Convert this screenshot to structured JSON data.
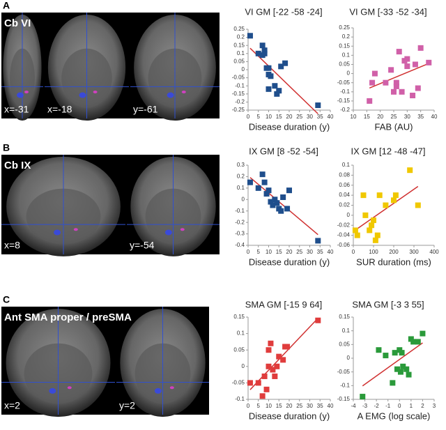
{
  "panels": [
    {
      "letter": "A",
      "region": "Cb VI",
      "slices": [
        "x=-31",
        "x=-18",
        "y=-61"
      ]
    },
    {
      "letter": "B",
      "region": "Cb IX",
      "slices": [
        "x=8",
        "y=-54"
      ]
    },
    {
      "letter": "C",
      "region": "Ant SMA proper / preSMA",
      "slices": [
        "x=2",
        "y=2"
      ]
    }
  ],
  "chart_data": [
    {
      "type": "scatter",
      "title": "VI GM [-22 -58 -24]",
      "x_label": "Disease duration (y)",
      "color": "#1f4e8c",
      "trend_color": "#d03030",
      "x": [
        1,
        5,
        7,
        7,
        8,
        8,
        9,
        10,
        10,
        11,
        10,
        13,
        14,
        15,
        16,
        18,
        34
      ],
      "values": [
        0.21,
        0.1,
        0.15,
        0.09,
        0.1,
        0.12,
        0.01,
        -0.03,
        0.01,
        -0.04,
        -0.12,
        -0.1,
        -0.15,
        -0.13,
        0.02,
        0.04,
        -0.22
      ],
      "xlim": [
        0,
        40
      ],
      "xticks": [
        0,
        5,
        10,
        15,
        20,
        25,
        30,
        35,
        40
      ],
      "ylim": [
        -0.25,
        0.25
      ],
      "yticks": [
        -0.25,
        -0.2,
        -0.15,
        -0.1,
        -0.05,
        0,
        0.05,
        0.1,
        0.15,
        0.2,
        0.25
      ]
    },
    {
      "type": "scatter",
      "title": "VI GM [-33 -52 -34]",
      "x_label": "FAB (AU)",
      "color": "#d060a8",
      "trend_color": "#d03030",
      "x": [
        16,
        17,
        18,
        22,
        24,
        25,
        26,
        26,
        27,
        28,
        29,
        30,
        30,
        32,
        33,
        34,
        35,
        38
      ],
      "values": [
        -0.15,
        -0.05,
        0.0,
        -0.05,
        0.02,
        -0.1,
        -0.07,
        -0.05,
        0.12,
        -0.1,
        0.07,
        0.04,
        0.08,
        -0.12,
        0.05,
        -0.08,
        0.14,
        0.06
      ],
      "xlim": [
        10,
        40
      ],
      "xticks": [
        10,
        15,
        20,
        25,
        30,
        35,
        40
      ],
      "ylim": [
        -0.2,
        0.25
      ],
      "yticks": [
        -0.2,
        -0.15,
        -0.1,
        -0.05,
        0,
        0.05,
        0.1,
        0.15,
        0.2,
        0.25
      ]
    },
    {
      "type": "scatter",
      "title": "IX GM [8 -52 -54]",
      "x_label": "Disease duration (y)",
      "color": "#1f4e8c",
      "trend_color": "#d03030",
      "x": [
        1,
        5,
        7,
        8,
        9,
        10,
        11,
        12,
        13,
        14,
        15,
        16,
        17,
        19,
        20,
        34
      ],
      "values": [
        0.15,
        0.1,
        0.22,
        0.15,
        0.05,
        0.08,
        -0.02,
        -0.05,
        0.0,
        -0.03,
        -0.08,
        -0.1,
        0.02,
        -0.08,
        0.08,
        -0.36
      ],
      "xlim": [
        0,
        40
      ],
      "xticks": [
        0,
        5,
        10,
        15,
        20,
        25,
        30,
        35,
        40
      ],
      "ylim": [
        -0.4,
        0.3
      ],
      "yticks": [
        -0.4,
        -0.3,
        -0.2,
        -0.1,
        0,
        0.1,
        0.2,
        0.3
      ]
    },
    {
      "type": "scatter",
      "title": "IX GM [12 -48 -47]",
      "x_label": "SUR duration (ms)",
      "color": "#f0c800",
      "trend_color": "#d03030",
      "x": [
        10,
        20,
        50,
        60,
        80,
        90,
        100,
        110,
        120,
        130,
        160,
        200,
        210,
        280,
        320
      ],
      "values": [
        -0.03,
        -0.04,
        0.04,
        0.0,
        -0.03,
        -0.02,
        -0.01,
        -0.05,
        -0.04,
        0.04,
        0.02,
        0.03,
        0.04,
        0.09,
        0.02
      ],
      "xlim": [
        0,
        400
      ],
      "xticks": [
        0,
        100,
        200,
        300,
        400
      ],
      "ylim": [
        -0.06,
        0.1
      ],
      "yticks": [
        -0.06,
        -0.04,
        -0.02,
        0,
        0.02,
        0.04,
        0.06,
        0.08,
        0.1
      ]
    },
    {
      "type": "scatter",
      "title": "SMA GM [-15 9 64]",
      "x_label": "Disease duration (y)",
      "color": "#e03c3c",
      "trend_color": "#d03030",
      "x": [
        1,
        5,
        7,
        8,
        9,
        10,
        10,
        11,
        12,
        13,
        14,
        15,
        17,
        18,
        19,
        34
      ],
      "values": [
        -0.05,
        -0.05,
        -0.09,
        -0.03,
        -0.07,
        0.0,
        0.05,
        0.07,
        -0.01,
        -0.03,
        0.0,
        0.03,
        0.02,
        0.06,
        0.06,
        0.14
      ],
      "xlim": [
        0,
        40
      ],
      "xticks": [
        0,
        5,
        10,
        15,
        20,
        25,
        30,
        35,
        40
      ],
      "ylim": [
        -0.1,
        0.15
      ],
      "yticks": [
        -0.1,
        -0.05,
        0,
        0.05,
        0.1,
        0.15
      ]
    },
    {
      "type": "scatter",
      "title": "SMA GM [-3 3 55]",
      "x_label": "A EMG (log scale)",
      "color": "#2a9a3a",
      "trend_color": "#d03030",
      "x": [
        -3.2,
        -1.8,
        -1.2,
        -0.6,
        -0.4,
        -0.2,
        0,
        0.2,
        0.1,
        0.3,
        0.6,
        0.8,
        1,
        1.2,
        1.6,
        2
      ],
      "values": [
        -0.14,
        0.03,
        0.01,
        -0.09,
        0.02,
        -0.04,
        0.03,
        0.02,
        -0.05,
        -0.03,
        -0.04,
        -0.06,
        0.07,
        0.06,
        0.06,
        0.09
      ],
      "xlim": [
        -4,
        3
      ],
      "xticks": [
        -4,
        -3,
        -2,
        -1,
        0,
        1,
        2,
        3
      ],
      "ylim": [
        -0.15,
        0.15
      ],
      "yticks": [
        -0.15,
        -0.1,
        -0.05,
        0,
        0.05,
        0.1,
        0.15
      ]
    }
  ]
}
